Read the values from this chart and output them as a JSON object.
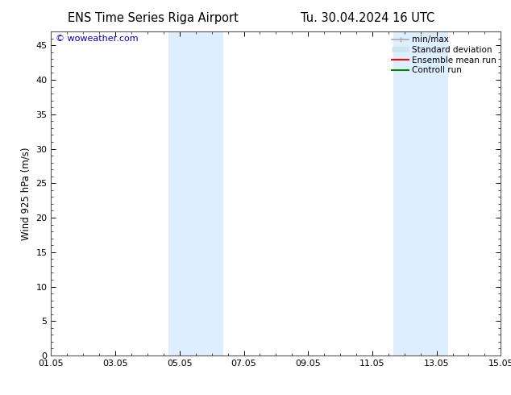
{
  "title_left": "ENS Time Series Riga Airport",
  "title_right": "Tu. 30.04.2024 16 UTC",
  "ylabel": "Wind 925 hPa (m/s)",
  "watermark": "© woweather.com",
  "xtick_labels": [
    "01.05",
    "03.05",
    "05.05",
    "07.05",
    "09.05",
    "11.05",
    "13.05",
    "15.05"
  ],
  "xtick_positions": [
    0,
    2,
    4,
    6,
    8,
    10,
    12,
    14
  ],
  "xlim": [
    0,
    14
  ],
  "ylim": [
    0,
    47
  ],
  "ytick_positions": [
    0,
    5,
    10,
    15,
    20,
    25,
    30,
    35,
    40,
    45
  ],
  "ytick_labels": [
    "0",
    "5",
    "10",
    "15",
    "20",
    "25",
    "30",
    "35",
    "40",
    "45"
  ],
  "bg_color": "#ffffff",
  "plot_bg_color": "#ffffff",
  "shaded_bands": [
    {
      "x_start": 3.65,
      "x_end": 5.35,
      "color": "#ddeeff"
    },
    {
      "x_start": 10.65,
      "x_end": 12.35,
      "color": "#ddeeff"
    }
  ],
  "legend_items": [
    {
      "label": "min/max",
      "color": "#aaaaaa",
      "lw": 1.2,
      "style": "solid",
      "type": "line_with_caps"
    },
    {
      "label": "Standard deviation",
      "color": "#d0e4f0",
      "lw": 5,
      "style": "solid",
      "type": "thick_line"
    },
    {
      "label": "Ensemble mean run",
      "color": "#ff0000",
      "lw": 1.5,
      "style": "solid",
      "type": "line"
    },
    {
      "label": "Controll run",
      "color": "#008000",
      "lw": 1.5,
      "style": "solid",
      "type": "line"
    }
  ],
  "title_fontsize": 10.5,
  "ylabel_fontsize": 8.5,
  "tick_fontsize": 8,
  "legend_fontsize": 7.5,
  "watermark_color": "#0000cc",
  "watermark_fontsize": 8,
  "minor_xtick_interval": 0.5,
  "spine_color": "#555555"
}
